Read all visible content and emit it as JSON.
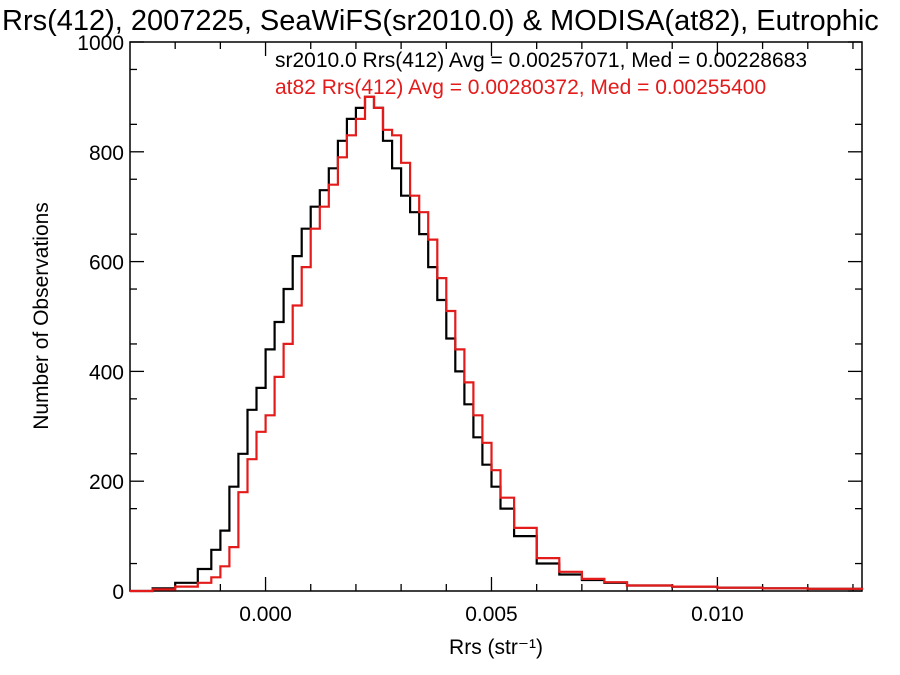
{
  "chart_data": {
    "type": "line",
    "title": "Rrs(412), 2007225, SeaWiFS(sr2010.0) & MODISA(at82), Eutrophic",
    "xlabel": "Rrs (str⁻¹)",
    "ylabel": "Number of Observations",
    "xlim": [
      -0.003,
      0.0132
    ],
    "ylim": [
      0,
      1000
    ],
    "xticks": [
      0.0,
      0.005,
      0.01
    ],
    "xtick_labels": [
      "0.000",
      "0.005",
      "0.010"
    ],
    "yticks": [
      0,
      200,
      400,
      600,
      800,
      1000
    ],
    "ytick_labels": [
      "0",
      "200",
      "400",
      "600",
      "800",
      "1000"
    ],
    "grid": false,
    "series": [
      {
        "name": "sr2010.0",
        "color": "#000000",
        "annotation": "sr2010.0 Rrs(412) Avg = 0.00257071, Med = 0.00228683",
        "x": [
          -0.003,
          -0.0025,
          -0.002,
          -0.0015,
          -0.0012,
          -0.001,
          -0.0008,
          -0.0006,
          -0.0004,
          -0.0002,
          0.0,
          0.0002,
          0.0004,
          0.0006,
          0.0008,
          0.001,
          0.0012,
          0.0014,
          0.0016,
          0.0018,
          0.002,
          0.0022,
          0.0024,
          0.0026,
          0.0028,
          0.003,
          0.0032,
          0.0034,
          0.0036,
          0.0038,
          0.004,
          0.0042,
          0.0044,
          0.0046,
          0.0048,
          0.005,
          0.0052,
          0.0055,
          0.006,
          0.0065,
          0.007,
          0.0075,
          0.008,
          0.009,
          0.01,
          0.011,
          0.012,
          0.0132
        ],
        "values": [
          0,
          5,
          15,
          40,
          75,
          110,
          190,
          250,
          330,
          370,
          440,
          490,
          550,
          610,
          660,
          700,
          730,
          770,
          820,
          860,
          880,
          900,
          880,
          820,
          770,
          720,
          690,
          650,
          590,
          530,
          460,
          400,
          340,
          280,
          230,
          190,
          150,
          100,
          50,
          30,
          20,
          15,
          10,
          8,
          6,
          5,
          4,
          2
        ]
      },
      {
        "name": "at82",
        "color": "#e31b1b",
        "annotation": "at82 Rrs(412) Avg = 0.00280372, Med = 0.00255400",
        "x": [
          -0.003,
          -0.0025,
          -0.002,
          -0.0015,
          -0.0012,
          -0.001,
          -0.0008,
          -0.0006,
          -0.0004,
          -0.0002,
          0.0,
          0.0002,
          0.0004,
          0.0006,
          0.0008,
          0.001,
          0.0012,
          0.0014,
          0.0016,
          0.0018,
          0.002,
          0.0022,
          0.0024,
          0.0026,
          0.0028,
          0.003,
          0.0032,
          0.0034,
          0.0036,
          0.0038,
          0.004,
          0.0042,
          0.0044,
          0.0046,
          0.0048,
          0.005,
          0.0052,
          0.0055,
          0.006,
          0.0065,
          0.007,
          0.0075,
          0.008,
          0.009,
          0.01,
          0.011,
          0.012,
          0.0132
        ],
        "values": [
          0,
          3,
          8,
          15,
          25,
          45,
          80,
          180,
          240,
          290,
          320,
          390,
          450,
          520,
          590,
          660,
          700,
          740,
          790,
          830,
          860,
          900,
          880,
          840,
          830,
          780,
          720,
          690,
          640,
          570,
          510,
          440,
          380,
          320,
          270,
          220,
          170,
          115,
          60,
          35,
          22,
          16,
          10,
          8,
          6,
          5,
          4,
          2
        ]
      }
    ]
  }
}
